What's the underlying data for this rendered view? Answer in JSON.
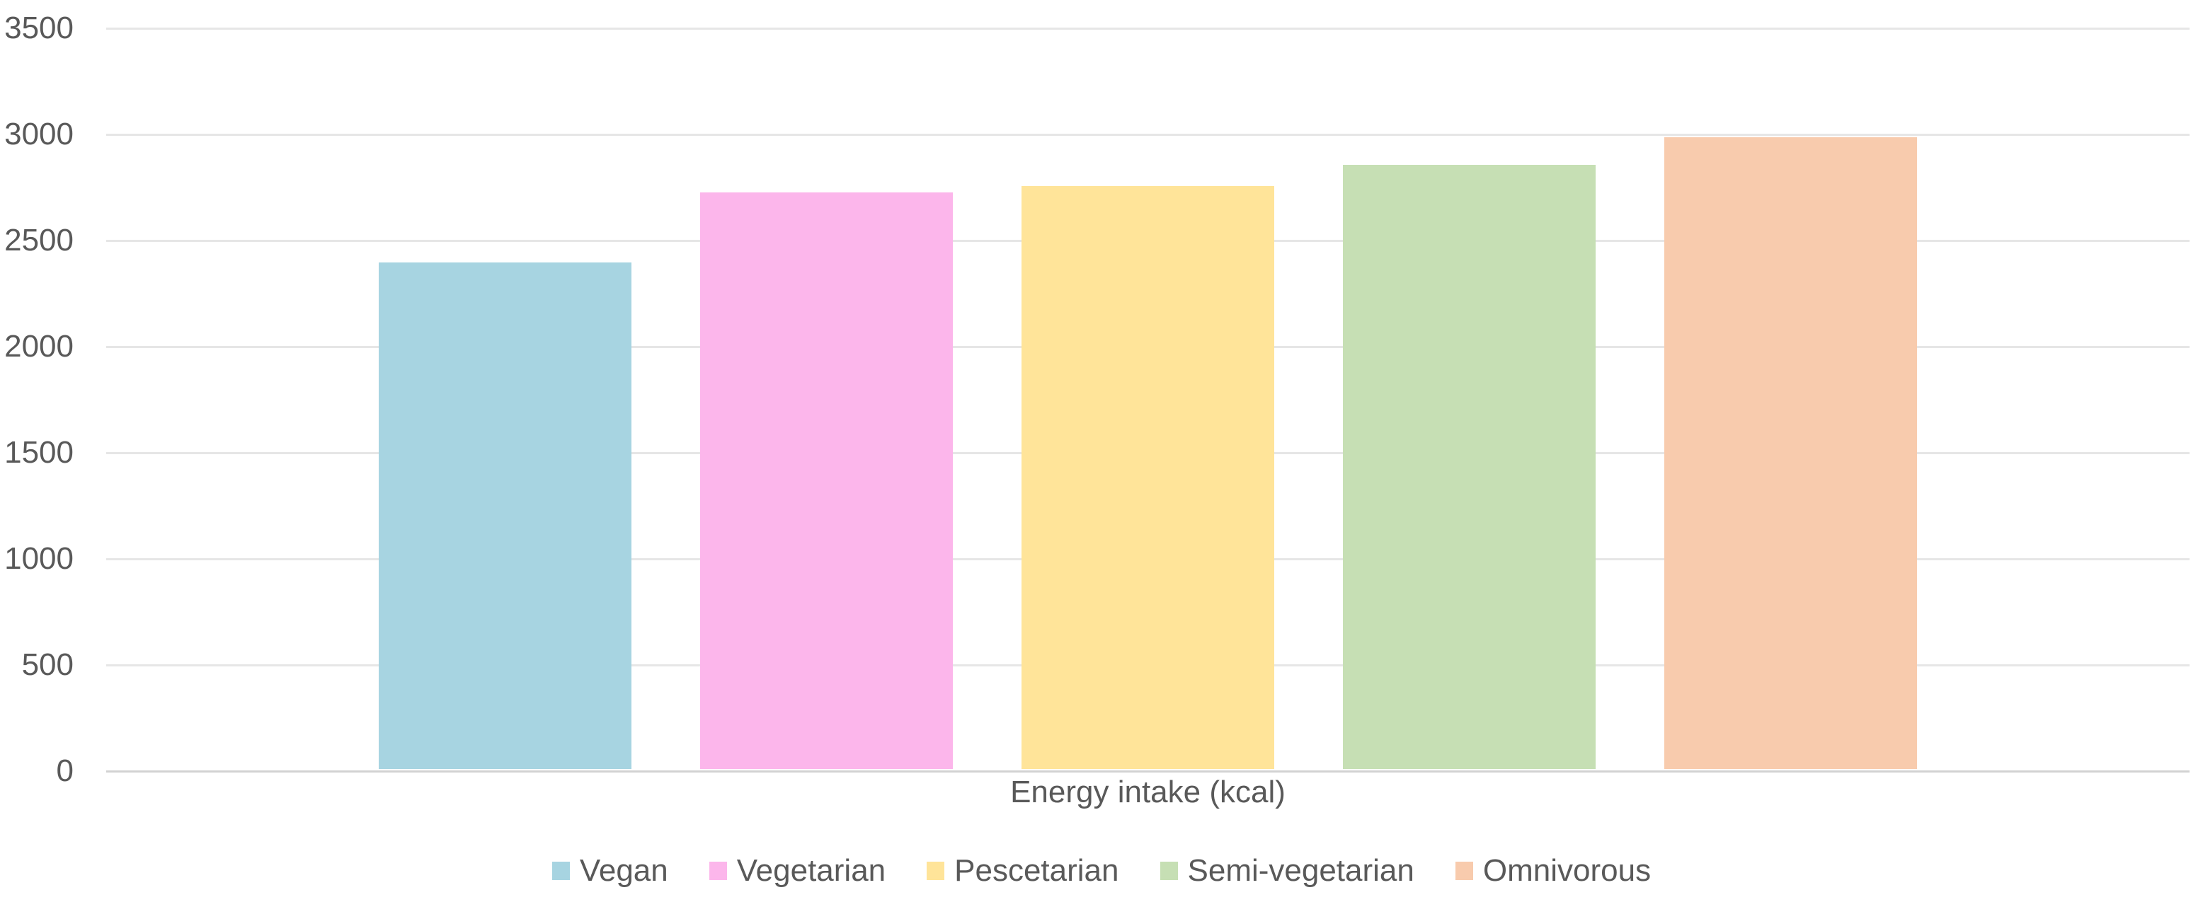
{
  "chart_data": {
    "type": "bar",
    "title": "",
    "categories": [
      "Vegan",
      "Vegetarian",
      "Pescetarian",
      "Semi-vegetarian",
      "Omnivorous"
    ],
    "values": [
      2385,
      2715,
      2745,
      2845,
      2975
    ],
    "series_colors": [
      "#A7D4E1",
      "#FCB6EB",
      "#FFE499",
      "#C6DFB4",
      "#F8CBAD"
    ],
    "xlabel": "Energy intake (kcal)",
    "ylabel": "",
    "ylim": [
      0,
      3500
    ],
    "yticks": [
      3500,
      3000,
      2500,
      2000,
      1500,
      1000,
      500,
      0
    ],
    "grid": true,
    "legend_position": "bottom",
    "legend": [
      {
        "label": "Vegan",
        "color": "#A7D4E1"
      },
      {
        "label": "Vegetarian",
        "color": "#FCB6EB"
      },
      {
        "label": "Pescetarian",
        "color": "#FFE499"
      },
      {
        "label": "Semi-vegetarian",
        "color": "#C6DFB4"
      },
      {
        "label": "Omnivorous",
        "color": "#F8CBAD"
      }
    ],
    "colors": {
      "gridline": "#E6E6E6",
      "axis_line": "#D2D2D2",
      "text": "#595959",
      "background": "#FFFFFF"
    }
  }
}
